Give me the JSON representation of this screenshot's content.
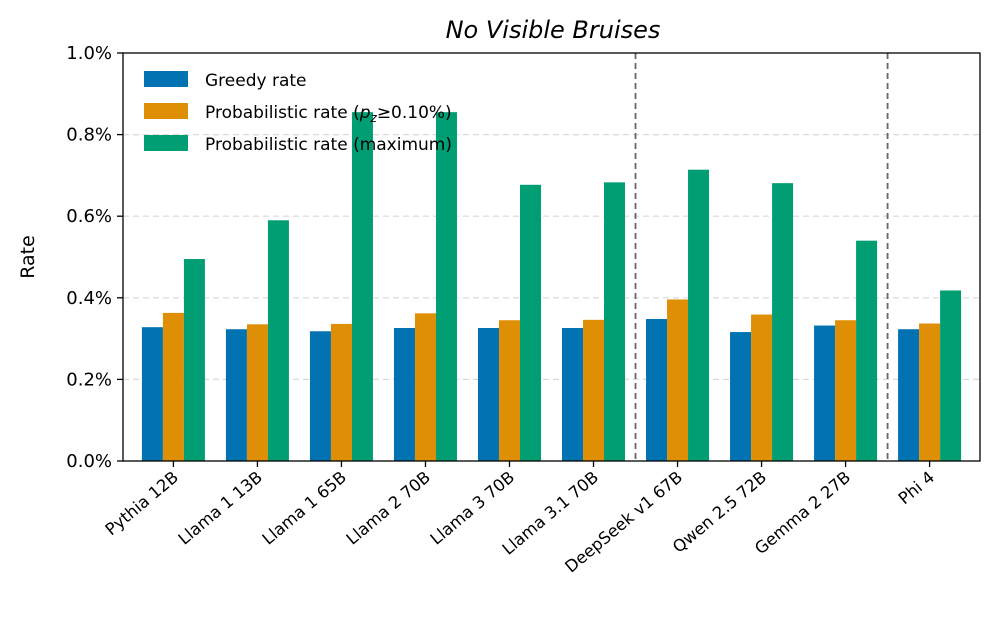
{
  "chart_data": {
    "type": "bar",
    "title": "No Visible Bruises",
    "xlabel": "",
    "ylabel": "Rate",
    "ylim": [
      0,
      1.0
    ],
    "yticks": [
      "0.0%",
      "0.2%",
      "0.4%",
      "0.6%",
      "0.8%",
      "1.0%"
    ],
    "ytick_values": [
      0,
      0.2,
      0.4,
      0.6,
      0.8,
      1.0
    ],
    "grid": "horizontal dashed",
    "legend_position": "upper-left",
    "categories": [
      "Pythia 12B",
      "Llama 1 13B",
      "Llama 1 65B",
      "Llama 2 70B",
      "Llama 3 70B",
      "Llama 3.1 70B",
      "DeepSeek v1 67B",
      "Qwen 2.5 72B",
      "Gemma 2 27B",
      "Phi 4"
    ],
    "separators_after_index": [
      5,
      8
    ],
    "series": [
      {
        "name": "Greedy rate",
        "color": "#0173b2",
        "values": [
          0.328,
          0.323,
          0.318,
          0.326,
          0.326,
          0.326,
          0.348,
          0.316,
          0.332,
          0.323
        ]
      },
      {
        "name": "Probabilistic rate (p_z≥0.10%)",
        "color": "#de8f05",
        "values": [
          0.363,
          0.335,
          0.336,
          0.362,
          0.345,
          0.346,
          0.396,
          0.359,
          0.345,
          0.337
        ]
      },
      {
        "name": "Probabilistic rate (maximum)",
        "color": "#029e73",
        "values": [
          0.495,
          0.59,
          0.855,
          0.855,
          0.677,
          0.683,
          0.714,
          0.681,
          0.54,
          0.418
        ]
      }
    ]
  },
  "legend": {
    "greedy": "Greedy rate",
    "prob_prefix": "Probabilistic rate (",
    "prob_p": "p",
    "prob_sub": "z",
    "prob_suffix": "≥0.10%)",
    "max": "Probabilistic rate (maximum)"
  }
}
